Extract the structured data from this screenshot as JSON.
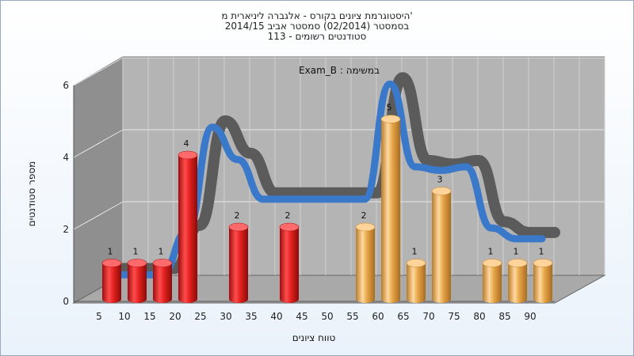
{
  "chart_data": {
    "type": "bar",
    "title": [
      "היסטוגרמת ציונים בקורס - אלגברה ליניארית מ'",
      "בסמסטר  (02/2014)  סמסטר אביב 2014/15",
      "סטודנטים רשומים - 113"
    ],
    "subtitle": "Exam_B : במשימה",
    "xlabel": "טווח ציונים",
    "ylabel": "מספר סטודנטים",
    "categories": [
      "5",
      "10",
      "15",
      "20",
      "25",
      "30",
      "35",
      "40",
      "45",
      "50",
      "55",
      "60",
      "65",
      "70",
      "75",
      "80",
      "85",
      "90"
    ],
    "values": [
      1,
      1,
      1,
      4,
      0,
      2,
      0,
      2,
      0,
      0,
      2,
      5,
      1,
      3,
      0,
      1,
      1,
      1
    ],
    "bar_colors": [
      "red",
      "red",
      "red",
      "red",
      "red",
      "red",
      "red",
      "red",
      "red",
      "red",
      "orange",
      "orange",
      "orange",
      "orange",
      "orange",
      "orange",
      "orange",
      "orange"
    ],
    "yticks": [
      "0",
      "2",
      "4",
      "6"
    ],
    "ylim": [
      0,
      6
    ],
    "grid": true,
    "curve": [
      0.3,
      0.3,
      0.3,
      1.5,
      4.4,
      3.5,
      2.4,
      2.4,
      2.4,
      2.4,
      2.4,
      5.6,
      3.3,
      3.2,
      3.3,
      1.6,
      1.3,
      1.3
    ],
    "colors": {
      "red": "#e0211f",
      "orange": "#e5a445",
      "curve_front": "#3a78c9",
      "curve_back": "#5b5b5b",
      "back_wall": "#b4b4b4",
      "side_wall": "#8f8f8f",
      "floor": "#a9a9a9"
    }
  }
}
